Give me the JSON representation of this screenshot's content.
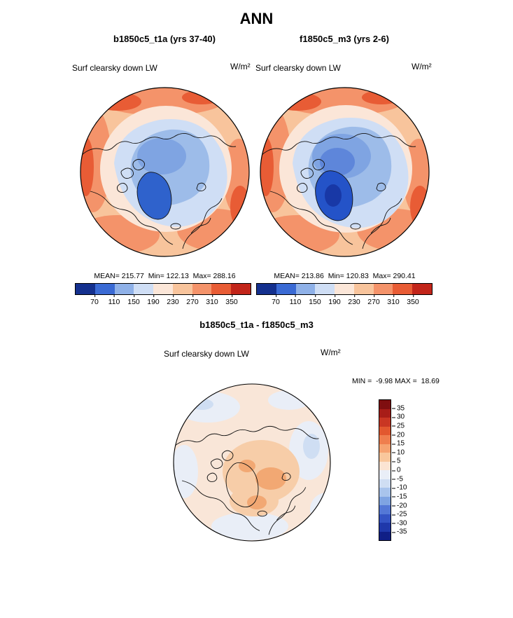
{
  "page": {
    "title": "ANN"
  },
  "panels": {
    "left": {
      "title": "b1850c5_t1a (yrs 37-40)",
      "variable": "Surf clearsky down LW",
      "units": "W/m²",
      "stats": "MEAN= 215.77  Min= 122.13  Max= 288.16"
    },
    "right": {
      "title": "f1850c5_m3 (yrs 2-6)",
      "variable": "Surf clearsky down LW",
      "units": "W/m²",
      "stats": "MEAN= 213.86  Min= 120.83  Max= 290.41"
    },
    "diff": {
      "title": "b1850c5_t1a - f1850c5_m3",
      "variable": "Surf clearsky down LW",
      "units": "W/m²",
      "stats": "MIN =  -9.98 MAX =  18.69"
    }
  },
  "colorbars": {
    "horizontal": {
      "ticks": [
        "70",
        "110",
        "150",
        "190",
        "230",
        "270",
        "310",
        "350"
      ],
      "colors": [
        "#14308e",
        "#3a6ad4",
        "#8fb1e8",
        "#cfdef5",
        "#fbe6d8",
        "#f8c49c",
        "#f4936a",
        "#e85c35",
        "#c2251a"
      ]
    },
    "vertical": {
      "ticks": [
        "35",
        "30",
        "25",
        "20",
        "15",
        "10",
        "5",
        "0",
        "-5",
        "-10",
        "-15",
        "-20",
        "-25",
        "-30",
        "-35"
      ],
      "colors": [
        "#7f0e10",
        "#a81d18",
        "#c93623",
        "#e2582f",
        "#ef7e4e",
        "#f6a371",
        "#f9c79c",
        "#fbe4d3",
        "#e9eef7",
        "#cfdef3",
        "#a9c4ec",
        "#7fa4e2",
        "#5478d6",
        "#3454c4",
        "#1f38aa",
        "#101f86"
      ]
    }
  },
  "chart_data": [
    {
      "type": "heatmap",
      "subtype": "polar-stereographic-contour-map",
      "season": "ANN",
      "title": "b1850c5_t1a (yrs 37-40)",
      "variable": "Surf clearsky down LW",
      "units": "W/m2",
      "stats": {
        "mean": 215.77,
        "min": 122.13,
        "max": 288.16
      },
      "contour_levels": [
        70,
        110,
        150,
        190,
        230,
        270,
        310,
        350
      ],
      "legend_position": "bottom"
    },
    {
      "type": "heatmap",
      "subtype": "polar-stereographic-contour-map",
      "season": "ANN",
      "title": "f1850c5_m3 (yrs 2-6)",
      "variable": "Surf clearsky down LW",
      "units": "W/m2",
      "stats": {
        "mean": 213.86,
        "min": 120.83,
        "max": 290.41
      },
      "contour_levels": [
        70,
        110,
        150,
        190,
        230,
        270,
        310,
        350
      ],
      "legend_position": "bottom"
    },
    {
      "type": "heatmap",
      "subtype": "polar-stereographic-contour-map-difference",
      "season": "ANN",
      "title": "b1850c5_t1a - f1850c5_m3",
      "variable": "Surf clearsky down LW",
      "units": "W/m2",
      "stats": {
        "min": -9.98,
        "max": 18.69
      },
      "contour_levels": [
        35,
        30,
        25,
        20,
        15,
        10,
        5,
        0,
        -5,
        -10,
        -15,
        -20,
        -25,
        -30,
        -35
      ],
      "legend_position": "right"
    }
  ]
}
